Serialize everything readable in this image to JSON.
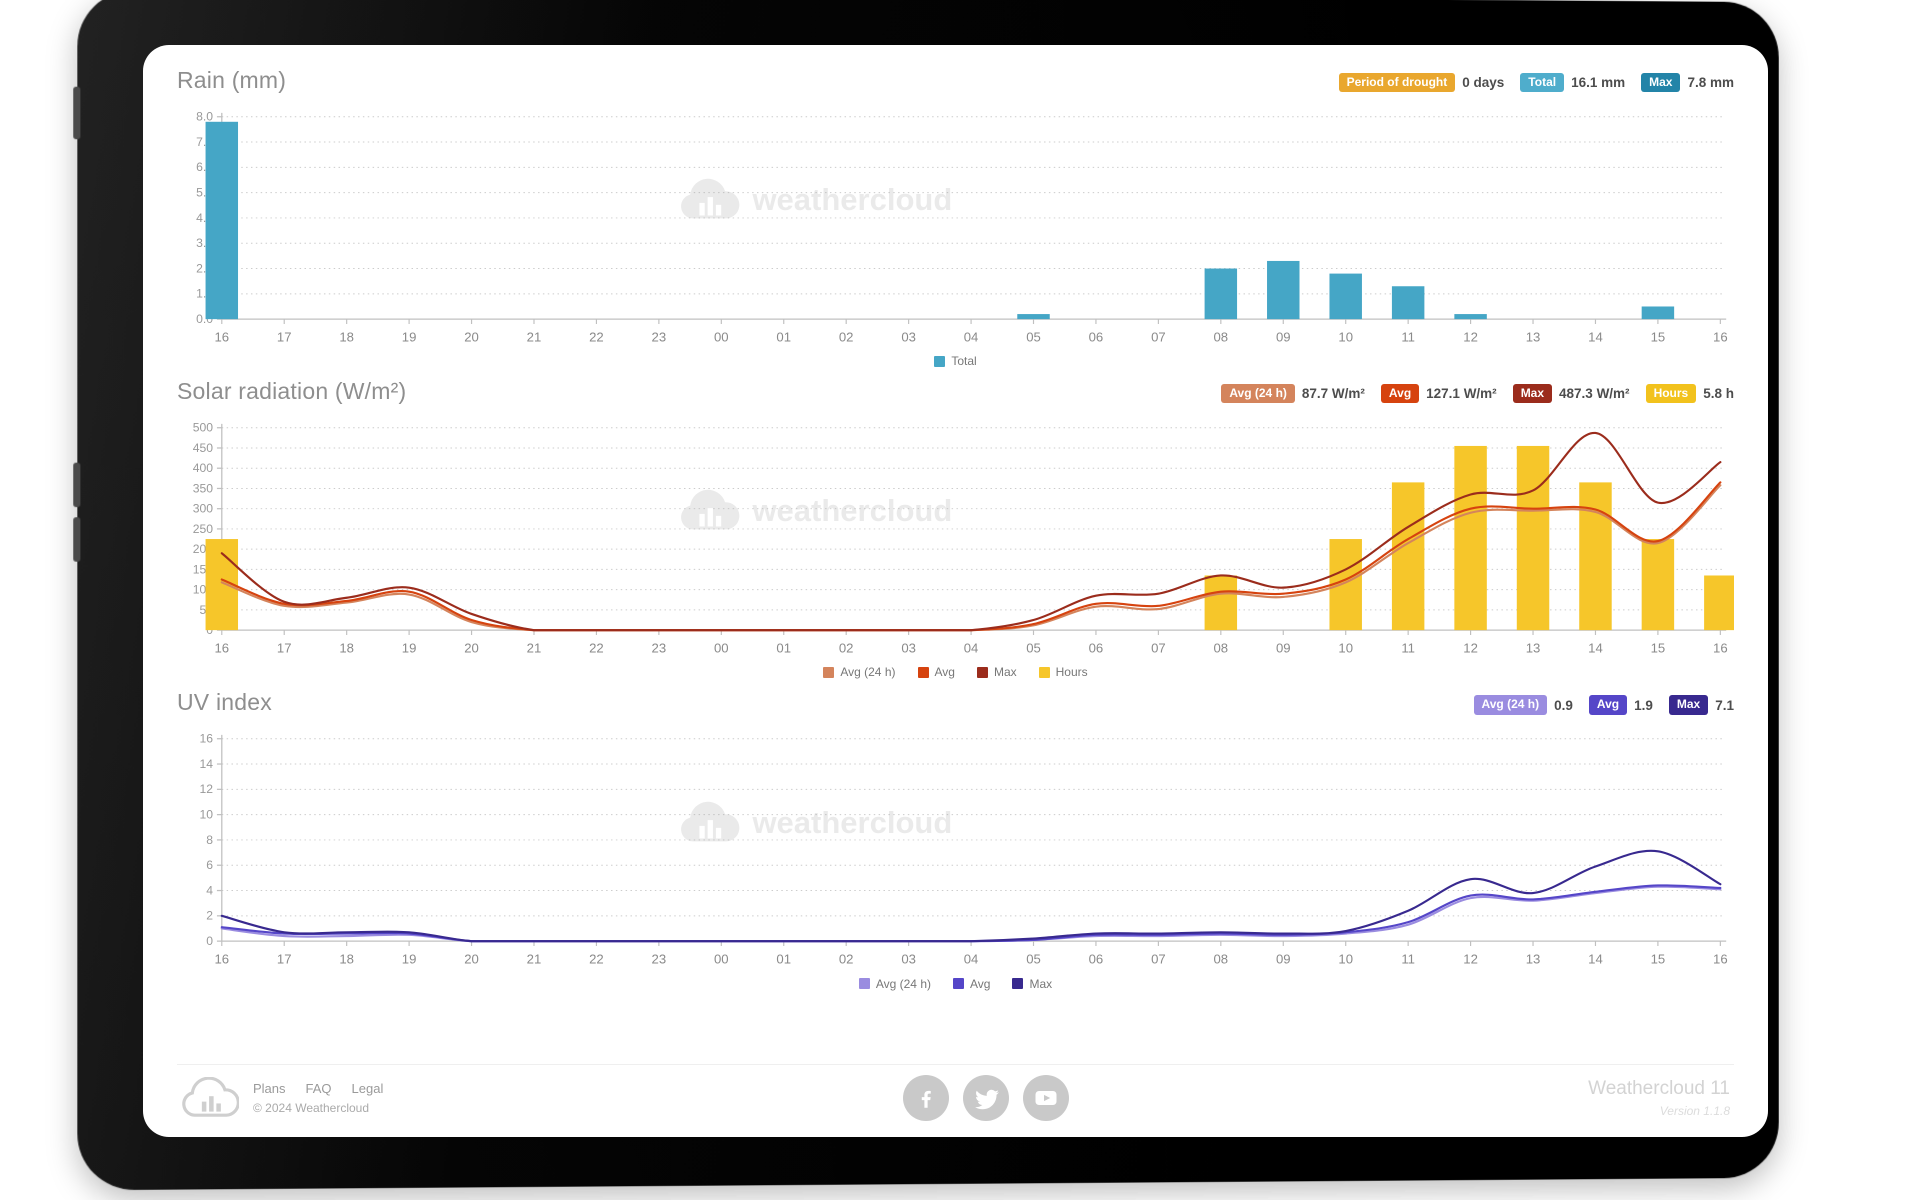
{
  "page": {
    "watermark": "weathercloud"
  },
  "colors": {
    "rain_bar": "#45a6c6",
    "axis": "#c0c0c0",
    "grid": "#cccccc"
  },
  "sections": {
    "rain": {
      "title": "Rain (mm)",
      "badges": [
        {
          "label": "Period of drought",
          "value": "0 days",
          "color": "#e9a72e"
        },
        {
          "label": "Total",
          "value": "16.1 mm",
          "color": "#4fadcc"
        },
        {
          "label": "Max",
          "value": "7.8 mm",
          "color": "#2384a8"
        }
      ]
    },
    "solar": {
      "title": "Solar radiation (W/m²)",
      "badges": [
        {
          "label": "Avg (24 h)",
          "value": "87.7 W/m²",
          "color": "#d4845c"
        },
        {
          "label": "Avg",
          "value": "127.1 W/m²",
          "color": "#d6430f"
        },
        {
          "label": "Max",
          "value": "487.3 W/m²",
          "color": "#9b2c1c"
        },
        {
          "label": "Hours",
          "value": "5.8 h",
          "color": "#f2c21d"
        }
      ]
    },
    "uv": {
      "title": "UV index",
      "badges": [
        {
          "label": "Avg (24 h)",
          "value": "0.9",
          "color": "#9a8ce0"
        },
        {
          "label": "Avg",
          "value": "1.9",
          "color": "#5546c8"
        },
        {
          "label": "Max",
          "value": "7.1",
          "color": "#38298f"
        }
      ]
    }
  },
  "chart_data": [
    {
      "type": "bar",
      "title": "Rain (mm)",
      "categories": [
        "16",
        "17",
        "18",
        "19",
        "20",
        "21",
        "22",
        "23",
        "00",
        "01",
        "02",
        "03",
        "04",
        "05",
        "06",
        "07",
        "08",
        "09",
        "10",
        "11",
        "12",
        "13",
        "14",
        "15",
        "16"
      ],
      "series": [
        {
          "name": "Total",
          "type": "bar",
          "color": "#45a6c6",
          "values": [
            7.8,
            0,
            0,
            0,
            0,
            0,
            0,
            0,
            0,
            0,
            0,
            0,
            0,
            0.2,
            0,
            0,
            2.0,
            2.3,
            1.8,
            1.3,
            0.2,
            0,
            0,
            0.5,
            0
          ]
        }
      ],
      "ylim": [
        0,
        8
      ],
      "ytick": 1,
      "ydecimals": 1,
      "grid": true,
      "legend_position": "bottom"
    },
    {
      "type": "bar+line",
      "title": "Solar radiation (W/m²)",
      "categories": [
        "16",
        "17",
        "18",
        "19",
        "20",
        "21",
        "22",
        "23",
        "00",
        "01",
        "02",
        "03",
        "04",
        "05",
        "06",
        "07",
        "08",
        "09",
        "10",
        "11",
        "12",
        "13",
        "14",
        "15",
        "16"
      ],
      "series": [
        {
          "name": "Avg (24 h)",
          "type": "line",
          "color": "#d4845c",
          "values": [
            118,
            60,
            68,
            88,
            20,
            0,
            0,
            0,
            0,
            0,
            0,
            0,
            0,
            12,
            58,
            52,
            90,
            82,
            118,
            215,
            290,
            295,
            292,
            215,
            358
          ]
        },
        {
          "name": "Avg",
          "type": "line",
          "color": "#d6430f",
          "values": [
            125,
            65,
            72,
            95,
            25,
            0,
            0,
            0,
            0,
            0,
            0,
            0,
            0,
            15,
            65,
            60,
            95,
            90,
            125,
            225,
            300,
            300,
            298,
            220,
            365
          ]
        },
        {
          "name": "Max",
          "type": "line",
          "color": "#9b2c1c",
          "values": [
            190,
            70,
            80,
            105,
            40,
            0,
            0,
            0,
            0,
            0,
            0,
            0,
            0,
            25,
            85,
            90,
            135,
            105,
            150,
            255,
            335,
            345,
            487,
            315,
            415
          ]
        },
        {
          "name": "Hours",
          "type": "bar",
          "color": "#f6c62a",
          "values": [
            225,
            0,
            0,
            0,
            0,
            0,
            0,
            0,
            0,
            0,
            0,
            0,
            0,
            0,
            0,
            0,
            135,
            0,
            225,
            365,
            455,
            455,
            365,
            225,
            135
          ]
        }
      ],
      "ylim": [
        0,
        500
      ],
      "ytick": 50,
      "ydecimals": 0,
      "grid": true,
      "legend_position": "bottom"
    },
    {
      "type": "line",
      "title": "UV index",
      "categories": [
        "16",
        "17",
        "18",
        "19",
        "20",
        "21",
        "22",
        "23",
        "00",
        "01",
        "02",
        "03",
        "04",
        "05",
        "06",
        "07",
        "08",
        "09",
        "10",
        "11",
        "12",
        "13",
        "14",
        "15",
        "16"
      ],
      "series": [
        {
          "name": "Avg (24 h)",
          "type": "line",
          "color": "#9a8ce0",
          "values": [
            1.0,
            0.4,
            0.4,
            0.5,
            0,
            0,
            0,
            0,
            0,
            0,
            0,
            0,
            0,
            0.1,
            0.4,
            0.4,
            0.5,
            0.4,
            0.6,
            1.3,
            3.4,
            3.2,
            3.8,
            4.3,
            4.1
          ]
        },
        {
          "name": "Avg",
          "type": "line",
          "color": "#5546c8",
          "values": [
            1.1,
            0.6,
            0.6,
            0.6,
            0,
            0,
            0,
            0,
            0,
            0,
            0,
            0,
            0,
            0.1,
            0.5,
            0.5,
            0.6,
            0.5,
            0.7,
            1.5,
            3.6,
            3.3,
            3.9,
            4.4,
            4.2
          ]
        },
        {
          "name": "Max",
          "type": "line",
          "color": "#38298f",
          "values": [
            2.0,
            0.7,
            0.7,
            0.7,
            0,
            0,
            0,
            0,
            0,
            0,
            0,
            0,
            0,
            0.2,
            0.6,
            0.6,
            0.7,
            0.6,
            0.8,
            2.4,
            4.9,
            3.8,
            5.9,
            7.1,
            4.5
          ]
        }
      ],
      "ylim": [
        0,
        16
      ],
      "ytick": 2,
      "ydecimals": 0,
      "grid": true,
      "legend_position": "bottom"
    }
  ],
  "footer": {
    "links": [
      "Plans",
      "FAQ",
      "Legal"
    ],
    "copyright": "© 2024 Weathercloud",
    "social": [
      "facebook",
      "twitter",
      "youtube"
    ],
    "app_name": "Weathercloud 11",
    "version": "Version 1.1.8"
  }
}
